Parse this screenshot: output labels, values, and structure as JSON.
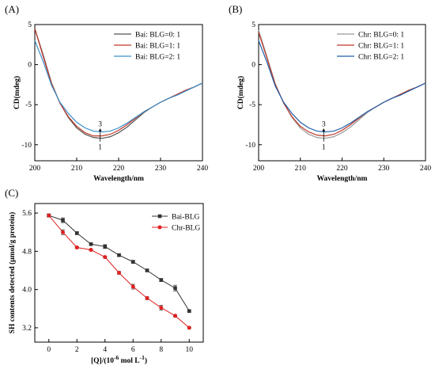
{
  "panels": {
    "A": {
      "label": "(A)"
    },
    "B": {
      "label": "(B)"
    },
    "C": {
      "label": "(C)"
    }
  },
  "chart_data": [
    {
      "type": "line",
      "panel": "(A)",
      "xlabel": "Wavelength/nm",
      "ylabel": "CD(mdeg)",
      "xlim": [
        200,
        240
      ],
      "ylim": [
        -12,
        5
      ],
      "xticks": [
        200,
        210,
        220,
        230,
        240
      ],
      "yticks": [
        5,
        0,
        -5,
        -10
      ],
      "legend_position": "top-right",
      "annotations": {
        "top": "3",
        "bottom": "1"
      },
      "x": [
        200,
        202,
        204,
        206,
        208,
        210,
        212,
        214,
        216,
        218,
        220,
        222,
        224,
        226,
        228,
        230,
        232,
        234,
        236,
        238,
        240
      ],
      "series": [
        {
          "name": "Bai: BLG=0: 1",
          "color": "#555555",
          "values": [
            4.5,
            1.2,
            -2.3,
            -4.8,
            -6.6,
            -7.9,
            -8.7,
            -9.1,
            -9.2,
            -9.0,
            -8.5,
            -7.8,
            -6.9,
            -6.0,
            -5.3,
            -4.7,
            -4.2,
            -3.7,
            -3.2,
            -2.8,
            -2.3
          ]
        },
        {
          "name": "Bai: BLG=1: 1",
          "color": "#c0392b",
          "values": [
            4.5,
            1.0,
            -2.4,
            -4.8,
            -6.5,
            -7.7,
            -8.5,
            -8.9,
            -8.9,
            -8.7,
            -8.2,
            -7.5,
            -6.7,
            -5.9,
            -5.3,
            -4.7,
            -4.2,
            -3.7,
            -3.2,
            -2.8,
            -2.3
          ]
        },
        {
          "name": "Bai: BLG=2: 1",
          "color": "#3a8fc9",
          "values": [
            3.0,
            0.4,
            -2.6,
            -4.7,
            -6.1,
            -7.2,
            -7.9,
            -8.3,
            -8.4,
            -8.3,
            -7.9,
            -7.3,
            -6.6,
            -5.9,
            -5.3,
            -4.7,
            -4.2,
            -3.8,
            -3.3,
            -2.8,
            -2.3
          ]
        }
      ]
    },
    {
      "type": "line",
      "panel": "(B)",
      "xlabel": "Wavelength/nm",
      "ylabel": "CD(mdeg)",
      "xlim": [
        200,
        240
      ],
      "ylim": [
        -12,
        5
      ],
      "xticks": [
        200,
        210,
        220,
        230,
        240
      ],
      "yticks": [
        5,
        0,
        -5,
        -10
      ],
      "legend_position": "top-right",
      "annotations": {
        "top": "3",
        "bottom": "1"
      },
      "x": [
        200,
        202,
        204,
        206,
        208,
        210,
        212,
        214,
        216,
        218,
        220,
        222,
        224,
        226,
        228,
        230,
        232,
        234,
        236,
        238,
        240
      ],
      "series": [
        {
          "name": "Chr: BLG=0: 1",
          "color": "#999999",
          "values": [
            4.3,
            1.0,
            -2.4,
            -4.8,
            -6.6,
            -7.9,
            -8.7,
            -9.1,
            -9.2,
            -9.0,
            -8.5,
            -7.8,
            -6.9,
            -6.0,
            -5.3,
            -4.7,
            -4.2,
            -3.7,
            -3.2,
            -2.8,
            -2.3
          ]
        },
        {
          "name": "Chr: BLG=1: 1",
          "color": "#c0392b",
          "values": [
            4.0,
            0.8,
            -2.5,
            -4.8,
            -6.5,
            -7.7,
            -8.4,
            -8.8,
            -8.9,
            -8.7,
            -8.2,
            -7.5,
            -6.7,
            -5.9,
            -5.3,
            -4.7,
            -4.2,
            -3.7,
            -3.2,
            -2.8,
            -2.3
          ]
        },
        {
          "name": "Chr: BLG=2: 1",
          "color": "#1f5fa8",
          "values": [
            3.0,
            0.3,
            -2.7,
            -4.7,
            -6.1,
            -7.2,
            -7.9,
            -8.3,
            -8.4,
            -8.3,
            -7.9,
            -7.3,
            -6.6,
            -5.9,
            -5.3,
            -4.7,
            -4.2,
            -3.8,
            -3.3,
            -2.8,
            -2.3
          ]
        }
      ]
    },
    {
      "type": "line",
      "panel": "(C)",
      "xlabel": "[Q]/(10",
      "xlabel_sup": "-6",
      "xlabel_mid": " mol L",
      "xlabel_sup2": "-1",
      "xlabel_end": ")",
      "ylabel": "SH contents detected (μmol/g protein)",
      "xlim": [
        -1,
        11
      ],
      "ylim": [
        2.9,
        5.8
      ],
      "xticks": [
        0,
        2,
        4,
        6,
        8,
        10
      ],
      "yticks": [
        5.6,
        4.8,
        4.0,
        3.2
      ],
      "legend_position": "top-right",
      "x": [
        0,
        1,
        2,
        3,
        4,
        5,
        6,
        7,
        8,
        9,
        10
      ],
      "series": [
        {
          "name": "Bai-BLG",
          "color": "#333333",
          "marker": "square",
          "values": [
            5.55,
            5.45,
            5.18,
            4.95,
            4.9,
            4.72,
            4.58,
            4.4,
            4.2,
            4.03,
            3.55
          ],
          "errors": [
            0.03,
            0.05,
            0.03,
            0.02,
            0.04,
            0.02,
            0.03,
            0.02,
            0.03,
            0.06,
            0.02
          ]
        },
        {
          "name": "Chr-BLG",
          "color": "#e02020",
          "marker": "circle",
          "values": [
            5.55,
            5.2,
            4.88,
            4.83,
            4.68,
            4.35,
            4.06,
            3.82,
            3.62,
            3.45,
            3.2
          ],
          "errors": [
            0.03,
            0.05,
            0.02,
            0.02,
            0.02,
            0.03,
            0.05,
            0.03,
            0.05,
            0.02,
            0.02
          ]
        }
      ]
    }
  ]
}
